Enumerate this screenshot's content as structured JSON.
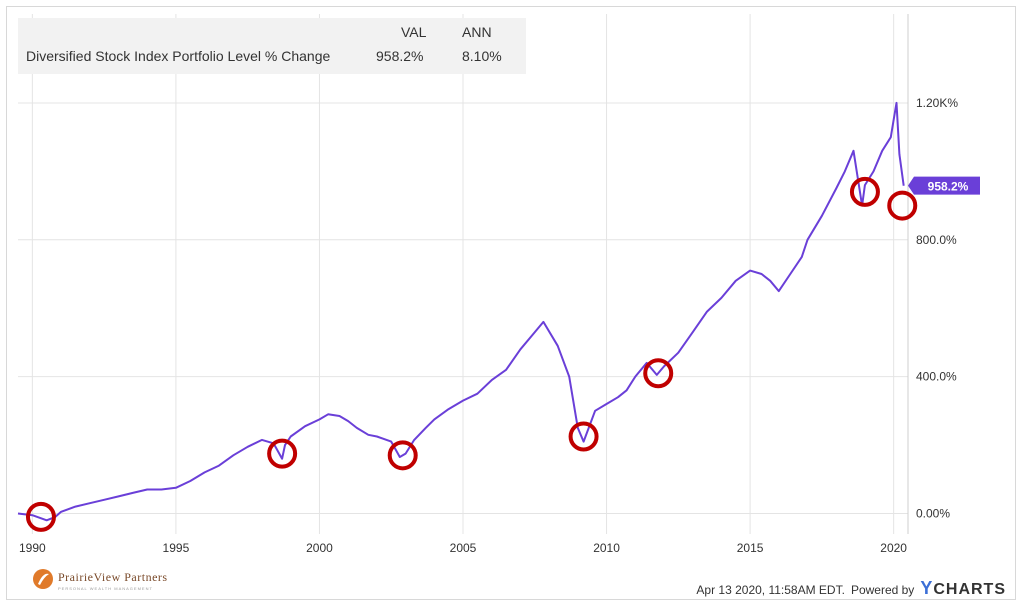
{
  "legend": {
    "col_val": "VAL",
    "col_ann": "ANN",
    "series_label": "Diversified Stock Index Portfolio Level % Change",
    "val": "958.2%",
    "ann": "8.10%"
  },
  "footer": {
    "timestamp": "Apr 13 2020, 11:58AM EDT.",
    "powered_by": "Powered by",
    "brand_y": "Y",
    "brand_rest": "CHARTS"
  },
  "logo": {
    "name": "PrairieView Partners",
    "tagline": "PERSONAL WEALTH MANAGEMENT"
  },
  "colors": {
    "series": "#6a3fd8",
    "marker": "#c00000",
    "grid": "#e4e4e4"
  },
  "chart_data": {
    "type": "line",
    "title": "",
    "xlabel": "",
    "ylabel": "",
    "xlim": [
      1989.5,
      2020.5
    ],
    "ylim": [
      -60,
      1460
    ],
    "x_ticks": [
      1990,
      1995,
      2000,
      2005,
      2010,
      2015,
      2020
    ],
    "y_ticks": [
      {
        "value": 0,
        "label": "0.00%"
      },
      {
        "value": 400,
        "label": "400.0%"
      },
      {
        "value": 800,
        "label": "800.0%"
      },
      {
        "value": 1200,
        "label": "1.20K%"
      }
    ],
    "end_label": "958.2%",
    "series": [
      {
        "name": "Diversified Stock Index Portfolio Level % Change",
        "x": [
          1989.5,
          1990.0,
          1990.5,
          1990.8,
          1991.0,
          1991.5,
          1992.0,
          1992.5,
          1993.0,
          1993.5,
          1994.0,
          1994.5,
          1995.0,
          1995.5,
          1996.0,
          1996.5,
          1997.0,
          1997.5,
          1998.0,
          1998.4,
          1998.7,
          1998.8,
          1999.0,
          1999.5,
          2000.0,
          2000.3,
          2000.7,
          2001.0,
          2001.3,
          2001.7,
          2002.0,
          2002.5,
          2002.8,
          2003.0,
          2003.3,
          2003.7,
          2004.0,
          2004.5,
          2005.0,
          2005.5,
          2006.0,
          2006.5,
          2007.0,
          2007.4,
          2007.8,
          2008.3,
          2008.7,
          2009.0,
          2009.2,
          2009.6,
          2010.0,
          2010.4,
          2010.7,
          2011.0,
          2011.4,
          2011.75,
          2012.0,
          2012.5,
          2013.0,
          2013.5,
          2014.0,
          2014.5,
          2015.0,
          2015.4,
          2015.7,
          2016.0,
          2016.4,
          2016.8,
          2017.0,
          2017.5,
          2018.0,
          2018.3,
          2018.6,
          2018.9,
          2019.0,
          2019.3,
          2019.6,
          2019.9,
          2020.0,
          2020.1,
          2020.2,
          2020.35
        ],
        "y": [
          0,
          -5,
          -20,
          -10,
          5,
          20,
          30,
          40,
          50,
          60,
          70,
          70,
          75,
          95,
          120,
          140,
          170,
          195,
          215,
          205,
          160,
          200,
          225,
          255,
          275,
          290,
          285,
          270,
          250,
          230,
          225,
          210,
          165,
          175,
          215,
          250,
          275,
          305,
          330,
          350,
          390,
          420,
          480,
          520,
          560,
          490,
          400,
          250,
          210,
          300,
          320,
          340,
          360,
          400,
          440,
          405,
          430,
          470,
          530,
          590,
          630,
          680,
          710,
          700,
          680,
          650,
          700,
          750,
          800,
          870,
          950,
          1000,
          1060,
          900,
          960,
          1000,
          1060,
          1100,
          1150,
          1200,
          1050,
          958.2
        ]
      }
    ],
    "markers": [
      {
        "x": 1990.3,
        "y": -10
      },
      {
        "x": 1998.7,
        "y": 175
      },
      {
        "x": 2002.9,
        "y": 170
      },
      {
        "x": 2009.2,
        "y": 225
      },
      {
        "x": 2011.8,
        "y": 410
      },
      {
        "x": 2019.0,
        "y": 940
      },
      {
        "x": 2020.3,
        "y": 900
      }
    ]
  }
}
